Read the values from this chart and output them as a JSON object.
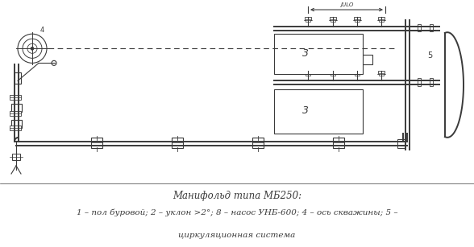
{
  "bg_color": "#ffffff",
  "line_color": "#3a3a3a",
  "title_text": "Манифольд типа МБ250:",
  "caption_line2": "1 – пол буровой; 2 – уклон >2°; 8 – насос УНБ-600; 4 – ось скважины; 5 –",
  "caption_line3": "циркуляционная система",
  "title_fontsize": 8.5,
  "caption_fontsize": 7.5,
  "fig_width": 5.88,
  "fig_height": 3.07,
  "dpi": 100
}
